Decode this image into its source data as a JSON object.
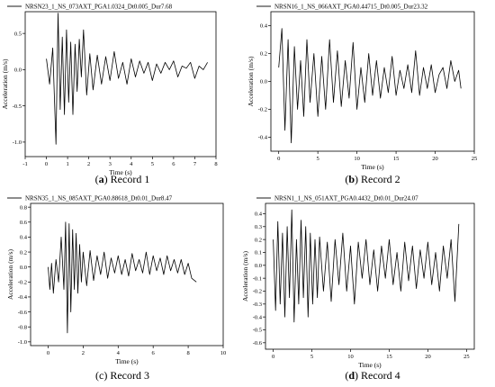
{
  "chart_data": [
    {
      "type": "line",
      "legend": "NRSN23_1_NS_073AXT_PGA1.0324_Dt0.005_Dur7.68",
      "caption_letter": "a",
      "caption_text": "Record 1",
      "caption_letter_bold": true,
      "xlabel": "Time (s)",
      "ylabel": "Acceleration (m/s)",
      "xlim": [
        -1,
        8
      ],
      "ylim": [
        -1.2,
        0.8
      ],
      "xticks": [
        -1,
        0,
        1,
        2,
        3,
        4,
        5,
        6,
        7,
        8
      ],
      "yticks": [
        -1.0,
        -0.5,
        0.0,
        0.5
      ],
      "duration": 7.68,
      "pga": 1.0324,
      "series": [
        {
          "x": [
            0,
            0.15,
            0.3,
            0.45,
            0.55,
            0.65,
            0.75,
            0.85,
            0.95,
            1.05,
            1.15,
            1.25,
            1.35,
            1.45,
            1.55,
            1.65,
            1.75,
            1.9,
            2.05,
            2.2,
            2.4,
            2.6,
            2.8,
            3.0,
            3.2,
            3.4,
            3.6,
            3.8,
            4.0,
            4.2,
            4.4,
            4.6,
            4.8,
            5.0,
            5.2,
            5.4,
            5.6,
            5.8,
            6.0,
            6.2,
            6.4,
            6.6,
            6.8,
            7.0,
            7.2,
            7.4,
            7.6
          ],
          "y": [
            0.15,
            -0.2,
            0.3,
            -1.03,
            0.78,
            -0.55,
            0.45,
            -0.62,
            0.55,
            -0.45,
            0.38,
            -0.62,
            0.35,
            -0.3,
            0.42,
            -0.1,
            0.55,
            -0.35,
            0.22,
            -0.28,
            0.2,
            -0.2,
            0.18,
            -0.15,
            0.25,
            -0.12,
            0.1,
            -0.2,
            0.15,
            -0.1,
            0.12,
            -0.05,
            0.1,
            -0.15,
            0.08,
            -0.05,
            0.1,
            0.0,
            0.12,
            -0.1,
            0.05,
            0.02,
            0.1,
            -0.12,
            0.05,
            0.0,
            0.1
          ]
        }
      ]
    },
    {
      "type": "line",
      "legend": "NRSN16_1_NS_066AXT_PGA0.44715_Dt0.005_Dur23.32",
      "caption_letter": "b",
      "caption_text": "Record 2",
      "caption_letter_bold": true,
      "xlabel": "Time (s)",
      "ylabel": "Acceleration (m/s)",
      "xlim": [
        -1,
        25
      ],
      "ylim": [
        -0.5,
        0.5
      ],
      "xticks": [
        0,
        5,
        10,
        15,
        20,
        25
      ],
      "yticks": [
        -0.4,
        -0.2,
        0.0,
        0.2,
        0.4
      ],
      "duration": 23.32,
      "pga": 0.44715,
      "series": [
        {
          "x": [
            0,
            0.4,
            0.8,
            1.2,
            1.6,
            2.0,
            2.4,
            2.8,
            3.2,
            3.6,
            4.0,
            4.5,
            5.0,
            5.5,
            6.0,
            6.5,
            7.0,
            7.5,
            8.0,
            8.5,
            9.0,
            9.5,
            10.0,
            10.5,
            11.0,
            11.5,
            12.0,
            12.5,
            13.0,
            13.5,
            14.0,
            14.5,
            15.0,
            15.5,
            16.0,
            16.5,
            17.0,
            17.5,
            18.0,
            18.5,
            19.0,
            19.5,
            20.0,
            20.5,
            21.0,
            21.5,
            22.0,
            22.5,
            23.0,
            23.3
          ],
          "y": [
            0.1,
            0.38,
            -0.35,
            0.3,
            -0.44,
            0.25,
            -0.2,
            0.15,
            -0.25,
            0.3,
            -0.15,
            0.2,
            -0.25,
            0.18,
            -0.2,
            0.3,
            -0.15,
            0.22,
            -0.18,
            0.15,
            -0.12,
            0.28,
            -0.2,
            0.1,
            -0.15,
            0.2,
            -0.1,
            0.15,
            -0.12,
            0.1,
            -0.08,
            0.18,
            -0.1,
            0.08,
            -0.05,
            0.12,
            -0.08,
            0.22,
            -0.1,
            0.1,
            -0.05,
            0.12,
            -0.08,
            0.05,
            0.1,
            -0.05,
            0.15,
            0.0,
            0.08,
            -0.05
          ]
        }
      ]
    },
    {
      "type": "line",
      "legend": "NRSN35_1_NS_085AXT_PGA0.88618_Dt0.01_Dur8.47",
      "caption_letter": "c",
      "caption_text": "Record 3",
      "caption_letter_bold": false,
      "xlabel": "Time (s)",
      "ylabel": "Acceleration (m/s)",
      "xlim": [
        -1,
        10
      ],
      "ylim": [
        -1.05,
        0.85
      ],
      "xticks": [
        0,
        2,
        4,
        6,
        8,
        10
      ],
      "yticks": [
        -1.0,
        -0.8,
        -0.6,
        -0.4,
        -0.2,
        0.0,
        0.2,
        0.4,
        0.6,
        0.8
      ],
      "duration": 8.47,
      "pga": 0.88618,
      "series": [
        {
          "x": [
            0,
            0.1,
            0.2,
            0.3,
            0.45,
            0.6,
            0.75,
            0.9,
            1.0,
            1.1,
            1.2,
            1.3,
            1.4,
            1.5,
            1.6,
            1.7,
            1.8,
            1.9,
            2.0,
            2.2,
            2.4,
            2.6,
            2.8,
            3.0,
            3.2,
            3.4,
            3.6,
            3.8,
            4.0,
            4.2,
            4.4,
            4.6,
            4.8,
            5.0,
            5.2,
            5.4,
            5.6,
            5.8,
            6.0,
            6.2,
            6.4,
            6.6,
            6.8,
            7.0,
            7.2,
            7.4,
            7.6,
            7.8,
            8.0,
            8.2,
            8.47
          ],
          "y": [
            0.0,
            -0.3,
            0.05,
            -0.35,
            0.1,
            -0.2,
            0.4,
            -0.3,
            0.6,
            -0.88,
            0.58,
            -0.6,
            0.5,
            -0.3,
            0.45,
            -0.35,
            0.3,
            -0.2,
            0.2,
            -0.25,
            0.22,
            -0.18,
            0.15,
            -0.1,
            0.2,
            -0.15,
            0.12,
            -0.08,
            0.15,
            -0.1,
            0.1,
            -0.12,
            0.18,
            -0.05,
            0.1,
            -0.08,
            0.2,
            -0.1,
            0.15,
            -0.05,
            0.12,
            -0.1,
            0.15,
            -0.05,
            0.1,
            -0.08,
            0.1,
            -0.1,
            0.05,
            -0.15,
            -0.2
          ]
        }
      ]
    },
    {
      "type": "line",
      "legend": "NRSN1_1_NS_051AXT_PGA0.4432_Dt0.01_Dur24.07",
      "caption_letter": "d",
      "caption_text": "Record 4",
      "caption_letter_bold": true,
      "xlabel": "Time (s)",
      "ylabel": "Acceleration (m/s)",
      "xlim": [
        -1,
        26
      ],
      "ylim": [
        -0.65,
        0.48
      ],
      "xticks": [
        0,
        5,
        10,
        15,
        20,
        25
      ],
      "yticks": [
        -0.6,
        -0.5,
        -0.4,
        -0.3,
        -0.2,
        -0.1,
        0.0,
        0.1,
        0.2,
        0.3,
        0.4
      ],
      "duration": 24.07,
      "pga": 0.4432,
      "series": [
        {
          "x": [
            0,
            0.3,
            0.6,
            0.9,
            1.2,
            1.5,
            1.8,
            2.1,
            2.4,
            2.7,
            3.0,
            3.3,
            3.6,
            3.9,
            4.2,
            4.5,
            4.8,
            5.1,
            5.4,
            5.7,
            6.0,
            6.5,
            7.0,
            7.5,
            8.0,
            8.5,
            9.0,
            9.5,
            10.0,
            10.5,
            11.0,
            11.5,
            12.0,
            12.5,
            13.0,
            13.5,
            14.0,
            14.5,
            15.0,
            15.5,
            16.0,
            16.5,
            17.0,
            17.5,
            18.0,
            18.5,
            19.0,
            19.5,
            20.0,
            20.5,
            21.0,
            21.5,
            22.0,
            22.5,
            23.0,
            23.5,
            24.0
          ],
          "y": [
            0.2,
            -0.35,
            0.34,
            -0.3,
            0.25,
            -0.4,
            0.3,
            -0.25,
            0.43,
            -0.44,
            0.2,
            -0.3,
            0.35,
            -0.25,
            0.3,
            -0.4,
            0.25,
            -0.3,
            0.2,
            -0.25,
            0.22,
            -0.2,
            0.18,
            -0.28,
            0.2,
            -0.15,
            0.25,
            -0.2,
            0.15,
            -0.3,
            0.18,
            -0.1,
            0.2,
            -0.15,
            0.12,
            -0.2,
            0.15,
            -0.1,
            0.2,
            -0.15,
            0.1,
            -0.2,
            0.18,
            -0.12,
            0.15,
            -0.18,
            0.12,
            -0.1,
            0.18,
            -0.15,
            0.1,
            -0.2,
            0.15,
            -0.1,
            0.2,
            -0.28,
            0.32
          ]
        }
      ]
    }
  ]
}
